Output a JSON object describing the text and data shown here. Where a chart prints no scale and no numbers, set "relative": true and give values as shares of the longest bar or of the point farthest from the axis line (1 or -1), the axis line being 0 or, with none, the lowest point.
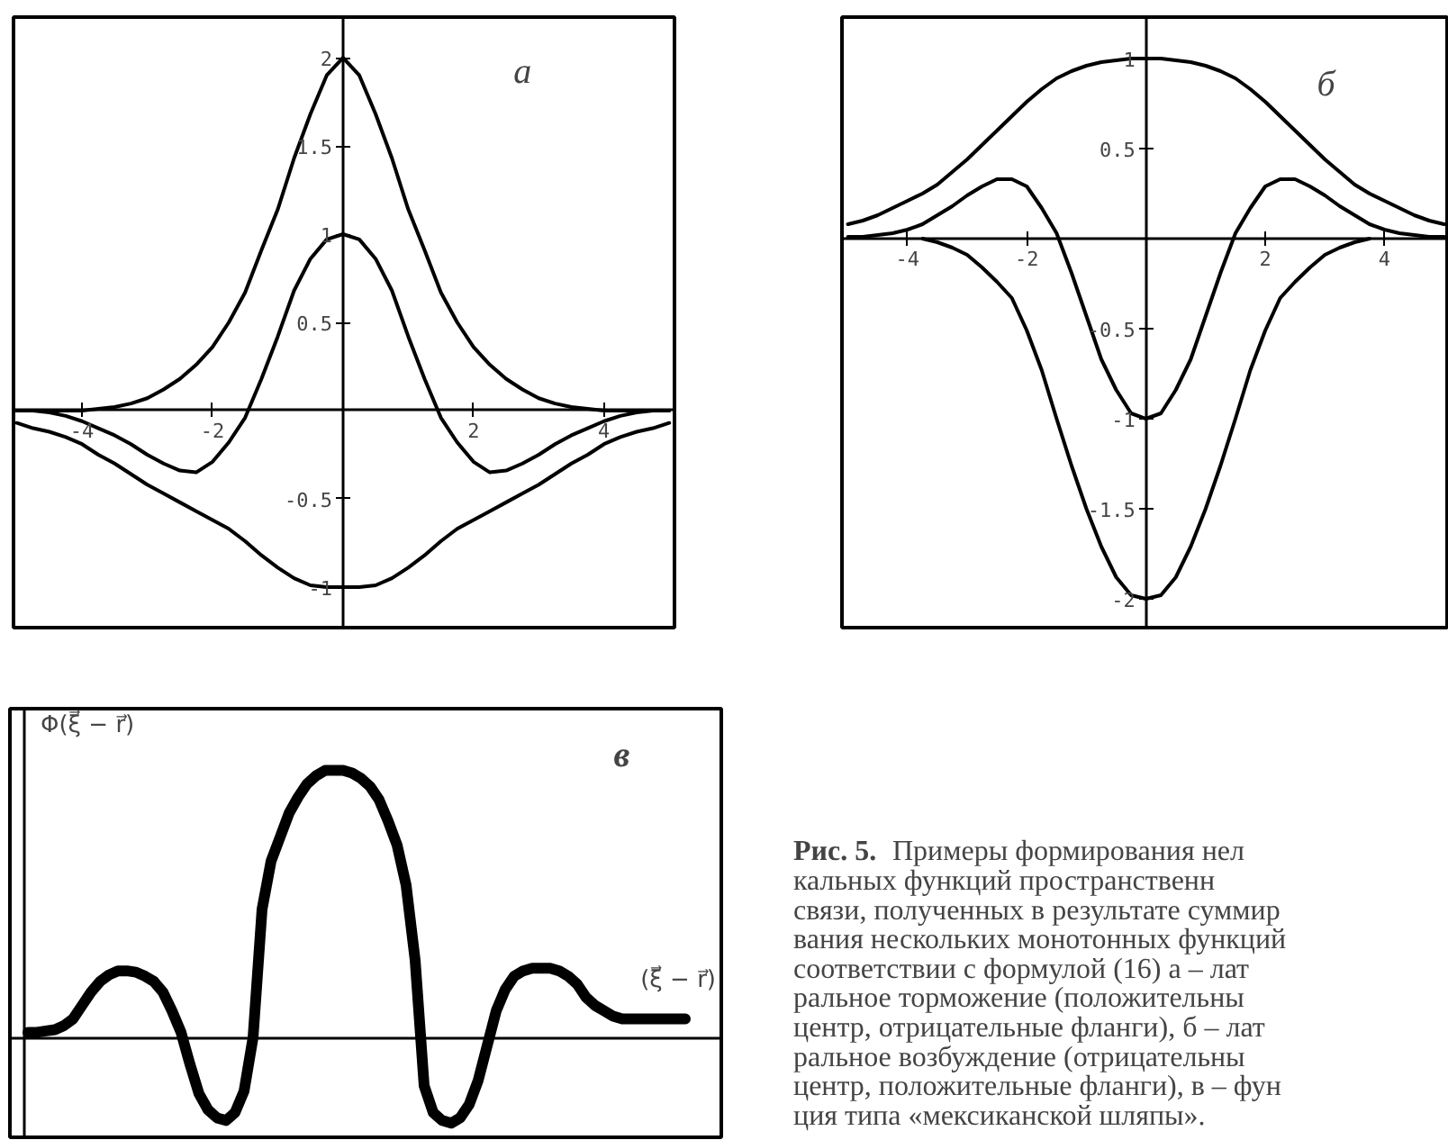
{
  "chart_data": [
    {
      "type": "line",
      "title": "а",
      "x": [
        -5,
        -4.75,
        -4.5,
        -4.25,
        -4,
        -3.75,
        -3.5,
        -3.25,
        -3,
        -2.75,
        -2.5,
        -2.25,
        -2,
        -1.75,
        -1.5,
        -1.25,
        -1,
        -0.75,
        -0.5,
        -0.25,
        0,
        0.25,
        0.5,
        0.75,
        1,
        1.25,
        1.5,
        1.75,
        2,
        2.25,
        2.5,
        2.75,
        3,
        3.25,
        3.5,
        3.75,
        4,
        4.25,
        4.5,
        4.75,
        5
      ],
      "xlim": [
        -5.05,
        5.08
      ],
      "ylim": [
        -1.23,
        2.23
      ],
      "xticks": [
        -4,
        -2,
        2,
        4
      ],
      "yticks": [
        -1,
        -0.5,
        0.5,
        1,
        1.5,
        2
      ],
      "series": [
        {
          "color": "#000000",
          "values": [
            0,
            0,
            0,
            0,
            0,
            0.01,
            0.02,
            0.04,
            0.07,
            0.12,
            0.18,
            0.26,
            0.36,
            0.5,
            0.67,
            0.91,
            1.14,
            1.43,
            1.68,
            1.9,
            2.0,
            1.9,
            1.68,
            1.43,
            1.14,
            0.91,
            0.67,
            0.5,
            0.36,
            0.26,
            0.18,
            0.12,
            0.07,
            0.04,
            0.02,
            0.01,
            0,
            0,
            0,
            0,
            0
          ]
        },
        {
          "color": "#000000",
          "values": [
            0,
            0,
            -0.01,
            -0.03,
            -0.06,
            -0.1,
            -0.14,
            -0.19,
            -0.25,
            -0.3,
            -0.34,
            -0.35,
            -0.29,
            -0.18,
            -0.04,
            0.18,
            0.42,
            0.68,
            0.86,
            0.97,
            1.0,
            0.97,
            0.86,
            0.68,
            0.42,
            0.18,
            -0.04,
            -0.18,
            -0.29,
            -0.35,
            -0.34,
            -0.3,
            -0.25,
            -0.19,
            -0.14,
            -0.1,
            -0.06,
            -0.03,
            -0.01,
            0,
            0
          ]
        },
        {
          "color": "#000000",
          "values": [
            -0.07,
            -0.1,
            -0.12,
            -0.15,
            -0.19,
            -0.25,
            -0.3,
            -0.36,
            -0.42,
            -0.47,
            -0.52,
            -0.57,
            -0.62,
            -0.67,
            -0.74,
            -0.82,
            -0.89,
            -0.95,
            -0.99,
            -1.0,
            -1.0,
            -1.0,
            -0.99,
            -0.95,
            -0.89,
            -0.82,
            -0.74,
            -0.67,
            -0.62,
            -0.57,
            -0.52,
            -0.47,
            -0.42,
            -0.36,
            -0.3,
            -0.25,
            -0.19,
            -0.15,
            -0.12,
            -0.1,
            -0.07
          ]
        }
      ]
    },
    {
      "type": "line",
      "title": "б",
      "x": [
        -5,
        -4.75,
        -4.5,
        -4.25,
        -4,
        -3.75,
        -3.5,
        -3.25,
        -3,
        -2.75,
        -2.5,
        -2.25,
        -2,
        -1.75,
        -1.5,
        -1.25,
        -1,
        -0.75,
        -0.5,
        -0.25,
        0,
        0.25,
        0.5,
        0.75,
        1,
        1.25,
        1.5,
        1.75,
        2,
        2.25,
        2.5,
        2.75,
        3,
        3.25,
        3.5,
        3.75,
        4,
        4.25,
        4.5,
        4.75,
        5
      ],
      "xlim": [
        -5.1,
        5.05
      ],
      "ylim": [
        -2.16,
        1.23
      ],
      "xticks": [
        -4,
        -2,
        2,
        4
      ],
      "yticks": [
        -2,
        -1.5,
        -1,
        -0.5,
        0.5,
        1
      ],
      "series": [
        {
          "color": "#000000",
          "values": [
            0.08,
            0.1,
            0.13,
            0.17,
            0.21,
            0.25,
            0.3,
            0.37,
            0.44,
            0.52,
            0.6,
            0.68,
            0.76,
            0.83,
            0.89,
            0.93,
            0.96,
            0.98,
            0.99,
            1.0,
            1.0,
            1.0,
            0.99,
            0.98,
            0.96,
            0.93,
            0.89,
            0.83,
            0.76,
            0.68,
            0.6,
            0.52,
            0.44,
            0.37,
            0.3,
            0.25,
            0.21,
            0.17,
            0.13,
            0.1,
            0.08
          ]
        },
        {
          "color": "#000000",
          "values": [
            0.01,
            0.01,
            0.02,
            0.03,
            0.05,
            0.08,
            0.13,
            0.18,
            0.24,
            0.29,
            0.33,
            0.33,
            0.29,
            0.17,
            0.03,
            -0.19,
            -0.43,
            -0.67,
            -0.84,
            -0.97,
            -1.0,
            -0.97,
            -0.84,
            -0.67,
            -0.43,
            -0.19,
            0.03,
            0.17,
            0.29,
            0.33,
            0.33,
            0.29,
            0.24,
            0.18,
            0.13,
            0.08,
            0.05,
            0.03,
            0.02,
            0.01,
            0.01
          ]
        },
        {
          "color": "#000000",
          "x": [
            -3.75,
            -3.5,
            -3.25,
            -3,
            -2.75,
            -2.5,
            -2.25,
            -2,
            -1.75,
            -1.5,
            -1.25,
            -1,
            -0.75,
            -0.5,
            -0.25,
            0,
            0.25,
            0.5,
            0.75,
            1,
            1.25,
            1.5,
            1.75,
            2,
            2.25,
            2.5,
            2.75,
            3,
            3.25,
            3.5,
            3.75
          ],
          "values": [
            0,
            -0.02,
            -0.05,
            -0.09,
            -0.16,
            -0.24,
            -0.33,
            -0.51,
            -0.73,
            -1.0,
            -1.26,
            -1.5,
            -1.71,
            -1.88,
            -1.98,
            -2.0,
            -1.98,
            -1.88,
            -1.71,
            -1.5,
            -1.26,
            -1.0,
            -0.73,
            -0.51,
            -0.33,
            -0.24,
            -0.16,
            -0.09,
            -0.05,
            -0.02,
            0
          ]
        }
      ]
    },
    {
      "type": "line",
      "title": "в",
      "xlabel": "(ξ⃗ − r⃗)",
      "ylabel": "Φ(ξ⃗ − r⃗)",
      "relative": true,
      "categories": [
        null,
        null,
        null,
        null,
        null,
        null,
        null,
        null,
        null,
        null,
        null,
        null,
        null,
        null,
        null,
        null,
        null,
        null,
        null,
        null,
        null,
        null,
        null,
        null,
        null,
        null,
        null,
        null,
        null,
        null,
        null,
        null,
        null,
        null,
        null,
        null,
        null,
        null,
        null,
        null,
        null,
        null,
        null,
        null,
        null,
        null,
        null,
        null,
        null,
        null,
        null,
        null,
        null,
        null,
        null,
        null,
        null,
        null,
        null,
        null,
        null,
        null,
        null,
        null,
        null,
        null,
        null,
        null,
        null,
        null,
        null,
        null,
        null,
        null
      ],
      "series": [
        {
          "color": "#000000",
          "values": [
            0.02,
            0.02,
            0.025,
            0.03,
            0.045,
            0.07,
            0.12,
            0.17,
            0.21,
            0.235,
            0.25,
            0.25,
            0.245,
            0.23,
            0.21,
            0.17,
            0.1,
            0.02,
            -0.1,
            -0.21,
            -0.27,
            -0.3,
            -0.31,
            -0.28,
            -0.2,
            0.0,
            0.48,
            0.66,
            0.75,
            0.84,
            0.9,
            0.95,
            0.98,
            1.0,
            1.0,
            1.0,
            0.99,
            0.97,
            0.94,
            0.89,
            0.81,
            0.72,
            0.57,
            0.29,
            -0.18,
            -0.28,
            -0.31,
            -0.32,
            -0.3,
            -0.25,
            -0.16,
            -0.03,
            0.1,
            0.18,
            0.23,
            0.25,
            0.26,
            0.26,
            0.26,
            0.25,
            0.23,
            0.2,
            0.15,
            0.12,
            0.1,
            0.08,
            0.07,
            0.07,
            0.07,
            0.07,
            0.07,
            0.07,
            0.07,
            0.07
          ]
        }
      ]
    },
    {
      "type": "other",
      "title": "Рис. 5.",
      "annotations": [
        "Примеры формирования нел",
        "кальных функций пространственн",
        "связи, полученных в результате суммир",
        "вания нескольких монотонных функций",
        "соответствии с формулой (16) а – лат",
        "ральное торможение (положительны",
        "центр, отрицательные фланги), б – лат",
        "ральное возбуждение (отрицательны",
        "центр, положительные фланги), в – фун",
        "ция типа «мексиканской шляпы»."
      ]
    }
  ]
}
